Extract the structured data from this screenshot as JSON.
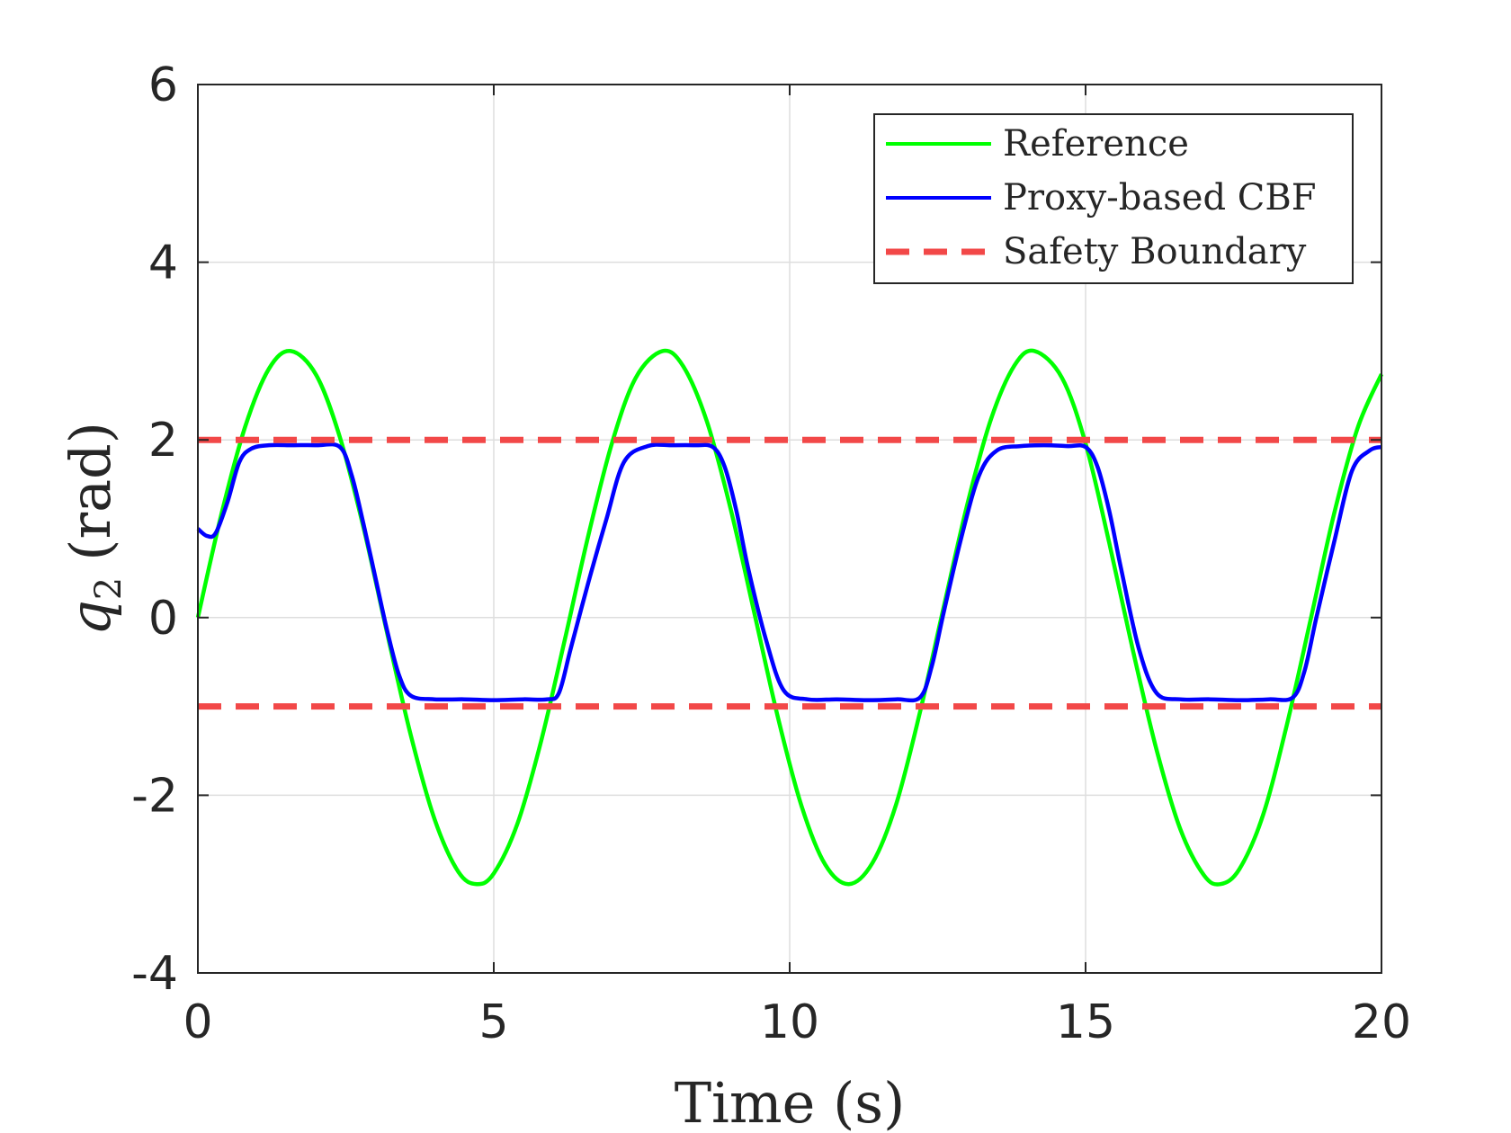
{
  "chart_data": {
    "type": "line",
    "title": "",
    "xlabel": "Time (s)",
    "ylabel_symbol": "q",
    "ylabel_subscript": "2",
    "ylabel_unit": "(rad)",
    "xlim": [
      0,
      20
    ],
    "ylim": [
      -4,
      6
    ],
    "xticks": [
      0,
      5,
      10,
      15,
      20
    ],
    "yticks": [
      -4,
      -2,
      0,
      2,
      4,
      6
    ],
    "xtick_labels": [
      "0",
      "5",
      "10",
      "15",
      "20"
    ],
    "ytick_labels": [
      "-4",
      "-2",
      "0",
      "2",
      "4",
      "6"
    ],
    "grid": true,
    "legend_position": "top-right",
    "series": [
      {
        "name": "Reference",
        "color": "#00ff00",
        "style": "solid",
        "x": [
          0,
          0.4,
          0.8,
          1.2,
          1.57,
          2.0,
          2.4,
          2.8,
          3.2,
          3.6,
          4.0,
          4.4,
          4.71,
          5.0,
          5.4,
          5.8,
          6.2,
          6.6,
          7.0,
          7.4,
          7.85,
          8.2,
          8.6,
          9.0,
          9.4,
          9.8,
          10.2,
          10.6,
          11.0,
          11.4,
          11.8,
          12.2,
          12.6,
          13.0,
          13.4,
          13.8,
          14.14,
          14.6,
          15.0,
          15.4,
          15.8,
          16.2,
          16.6,
          17.0,
          17.28,
          17.6,
          18.0,
          18.4,
          18.8,
          19.2,
          19.6,
          20.0
        ],
        "values": [
          0.0,
          1.17,
          2.15,
          2.8,
          3.0,
          2.73,
          2.03,
          1.01,
          -0.18,
          -1.33,
          -2.27,
          -2.86,
          -3.0,
          -2.88,
          -2.32,
          -1.39,
          -0.25,
          0.93,
          1.97,
          2.7,
          3.0,
          2.83,
          2.21,
          1.23,
          0.06,
          -1.12,
          -2.12,
          -2.78,
          -3.0,
          -2.76,
          -2.1,
          -1.07,
          0.11,
          1.27,
          2.23,
          2.84,
          3.0,
          2.7,
          1.96,
          0.84,
          -0.37,
          -1.49,
          -2.38,
          -2.9,
          -3.0,
          -2.83,
          -2.22,
          -1.21,
          -0.03,
          1.17,
          2.14,
          2.74
        ]
      },
      {
        "name": "Proxy-based CBF",
        "color": "#0000ff",
        "style": "solid",
        "x": [
          0,
          0.15,
          0.3,
          0.5,
          0.7,
          0.9,
          1.2,
          1.6,
          2.0,
          2.4,
          2.6,
          2.8,
          3.0,
          3.2,
          3.4,
          3.6,
          4.0,
          4.5,
          5.0,
          5.5,
          5.9,
          6.1,
          6.3,
          6.6,
          6.9,
          7.2,
          7.6,
          8.0,
          8.4,
          8.7,
          8.9,
          9.1,
          9.3,
          9.6,
          9.9,
          10.3,
          10.8,
          11.3,
          11.8,
          12.2,
          12.4,
          12.6,
          12.9,
          13.2,
          13.5,
          13.9,
          14.3,
          14.7,
          15.0,
          15.2,
          15.4,
          15.6,
          15.9,
          16.2,
          16.6,
          17.1,
          17.6,
          18.1,
          18.5,
          18.7,
          18.9,
          19.2,
          19.5,
          19.8,
          20.0
        ],
        "values": [
          1.0,
          0.92,
          0.95,
          1.3,
          1.75,
          1.9,
          1.94,
          1.94,
          1.94,
          1.92,
          1.6,
          1.05,
          0.45,
          -0.15,
          -0.65,
          -0.88,
          -0.92,
          -0.92,
          -0.93,
          -0.92,
          -0.92,
          -0.85,
          -0.35,
          0.4,
          1.1,
          1.75,
          1.93,
          1.94,
          1.94,
          1.92,
          1.7,
          1.2,
          0.55,
          -0.25,
          -0.82,
          -0.92,
          -0.92,
          -0.93,
          -0.92,
          -0.9,
          -0.55,
          0.05,
          0.9,
          1.6,
          1.88,
          1.93,
          1.94,
          1.93,
          1.92,
          1.7,
          1.2,
          0.55,
          -0.35,
          -0.85,
          -0.92,
          -0.92,
          -0.93,
          -0.92,
          -0.9,
          -0.6,
          0.0,
          0.85,
          1.65,
          1.88,
          1.92
        ]
      },
      {
        "name": "Safety Boundary",
        "color": "#f24848",
        "style": "dashed",
        "x": [
          0,
          20
        ],
        "values": [
          2,
          2
        ]
      },
      {
        "name": "Safety Boundary",
        "color": "#f24848",
        "style": "dashed",
        "x": [
          0,
          20
        ],
        "values": [
          -1,
          -1
        ]
      }
    ],
    "legend": [
      "Reference",
      "Proxy-based CBF",
      "Safety Boundary"
    ]
  }
}
